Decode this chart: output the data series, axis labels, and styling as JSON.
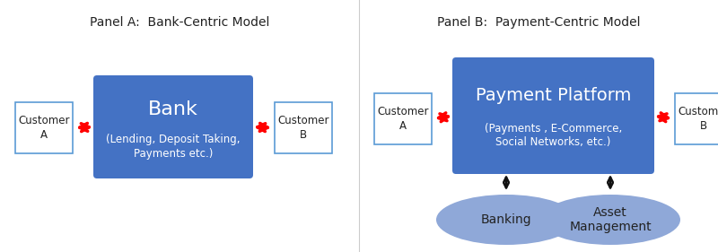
{
  "panel_a_title": "Panel A:  Bank-Centric Model",
  "panel_b_title": "Panel B:  Payment-Centric Model",
  "bank_label": "Bank",
  "bank_sublabel": "(Lending, Deposit Taking,\nPayments etc.)",
  "payment_label": "Payment Platform",
  "payment_sublabel": "(Payments , E-Commerce,\nSocial Networks, etc.)",
  "customer_a": "Customer\nA",
  "customer_b": "Customer\nB",
  "banking_label": "Banking",
  "asset_mgmt_label": "Asset\nManagement",
  "box_color": "#4472C4",
  "ellipse_color": "#8FA8D8",
  "customer_box_edge": "#5B9BD5",
  "arrow_red": "#FF0000",
  "arrow_black": "#111111",
  "bg_color": "#FFFFFF"
}
